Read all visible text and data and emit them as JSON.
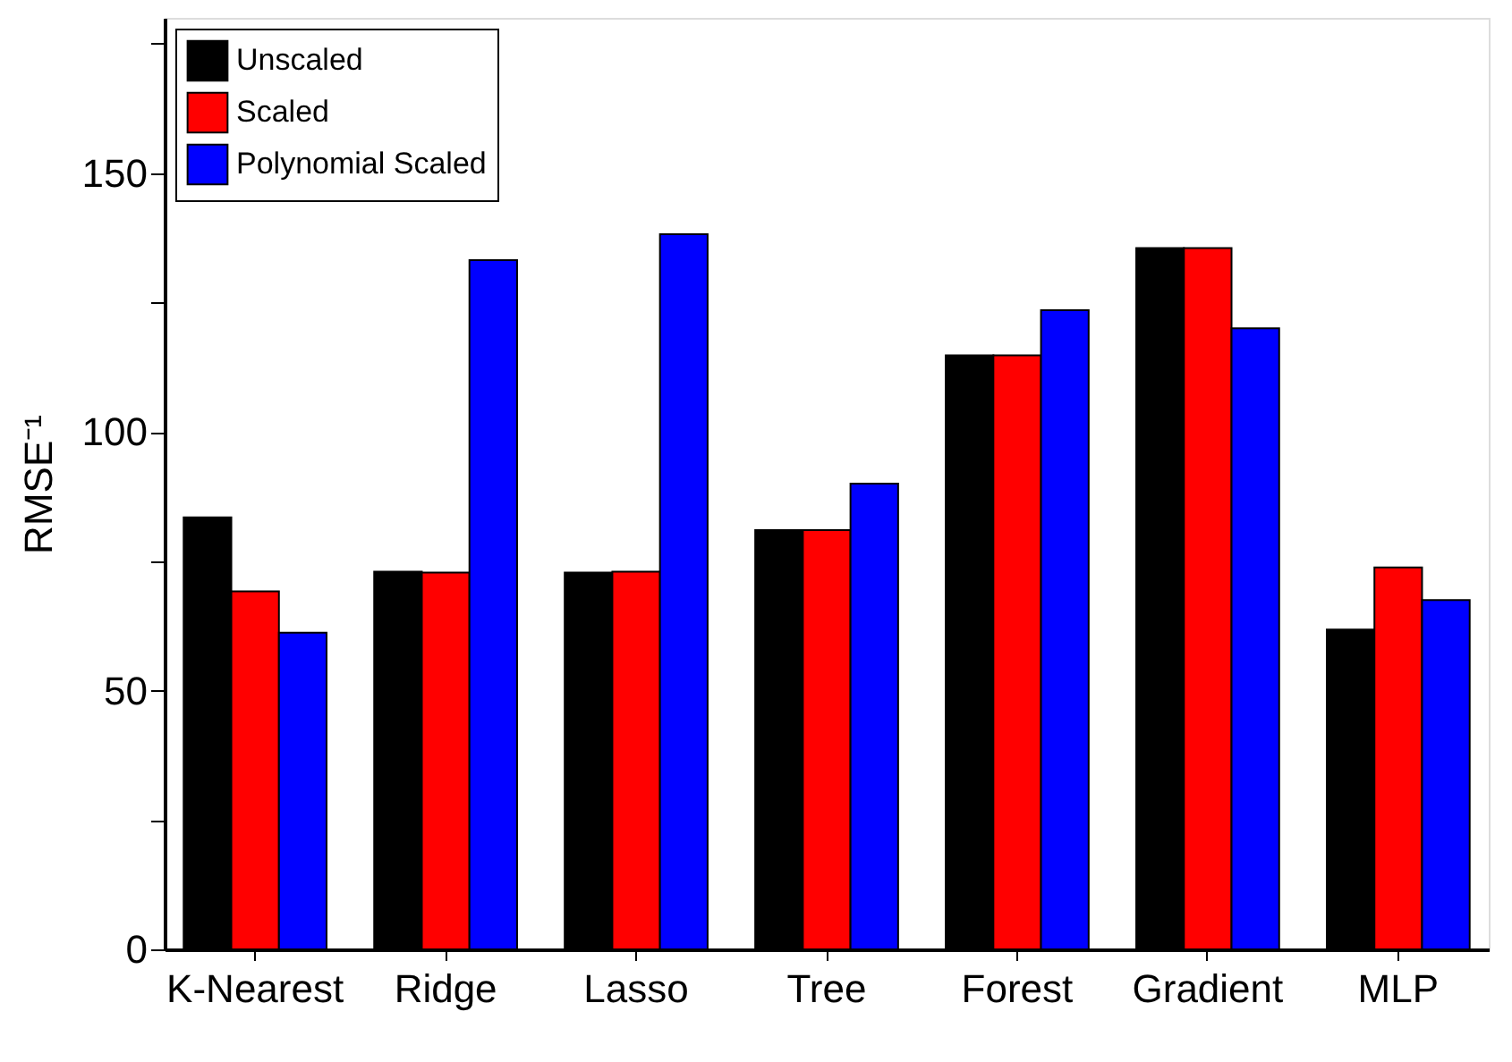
{
  "chart_data": {
    "type": "bar",
    "ylabel": "RMSE⁻¹",
    "categories": [
      "K-Nearest",
      "Ridge",
      "Lasso",
      "Tree",
      "Forest",
      "Gradient",
      "MLP"
    ],
    "series": [
      {
        "name": "Unscaled",
        "color": "#000000",
        "values": [
          83.5,
          73,
          72.8,
          81,
          114.8,
          135.5,
          61.8
        ]
      },
      {
        "name": "Scaled",
        "color": "#ff0000",
        "values": [
          69.2,
          72.8,
          73,
          81,
          114.8,
          135.5,
          73.8
        ]
      },
      {
        "name": "Polynomial Scaled",
        "color": "#0000ff",
        "values": [
          61.2,
          133.2,
          138.2,
          90,
          123.5,
          120,
          67.5
        ]
      }
    ],
    "ylim": [
      0,
      180
    ],
    "yticks": [
      0,
      {
        "value": 25,
        "label": null
      },
      50,
      {
        "value": 75,
        "label": null
      },
      100,
      {
        "value": 125,
        "label": null
      },
      150,
      {
        "value": 175,
        "label": null
      }
    ],
    "grid": false,
    "legend": "top left"
  }
}
